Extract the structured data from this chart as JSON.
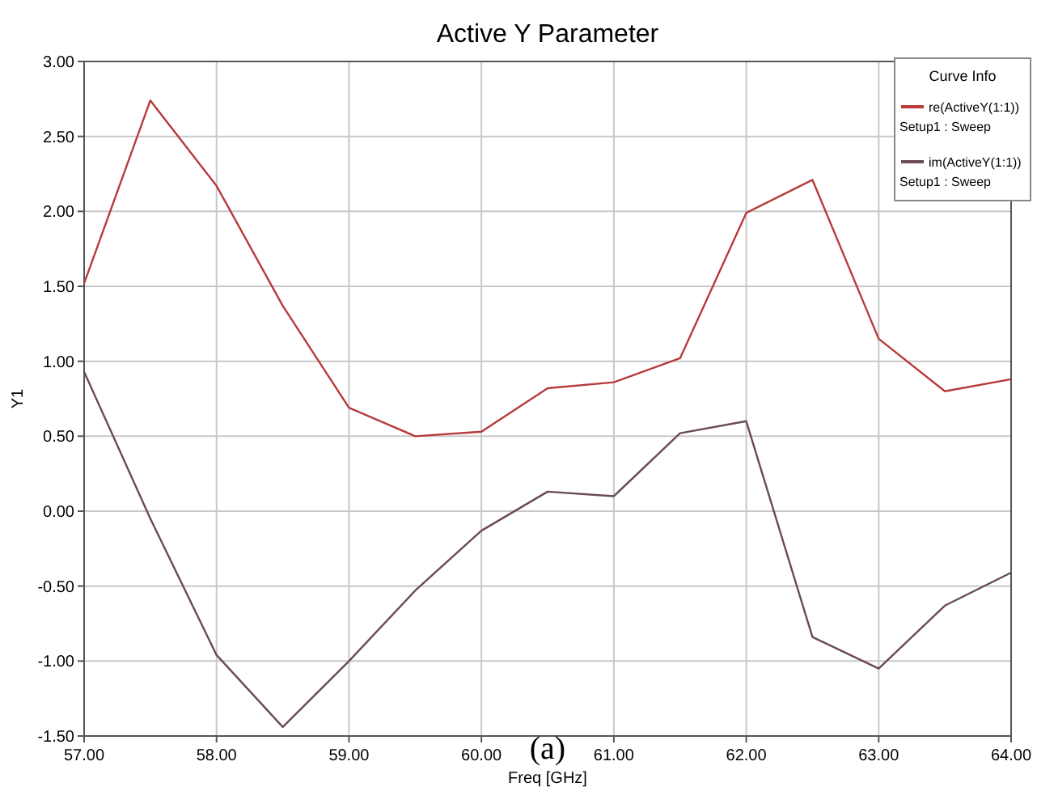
{
  "chart_data": {
    "type": "line",
    "title": "Active Y Parameter",
    "xlabel": "Freq [GHz]",
    "ylabel": "Y1",
    "legend_title": "Curve Info",
    "annotations": [
      "(a)"
    ],
    "x": [
      57,
      57.5,
      58,
      58.5,
      59,
      59.5,
      60,
      60.5,
      61,
      61.5,
      62,
      62.5,
      63,
      63.5,
      64
    ],
    "series": [
      {
        "name": "re(ActiveY(1:1))\nSetup1 : Sweep",
        "color": "#b83a3a",
        "values": [
          1.52,
          2.74,
          2.17,
          1.37,
          0.69,
          0.5,
          0.53,
          0.82,
          0.86,
          1.02,
          1.99,
          2.21,
          1.15,
          0.8,
          0.88
        ]
      },
      {
        "name": "im(ActiveY(1:1))\nSetup1 : Sweep",
        "color": "#6a4a58",
        "values": [
          0.93,
          -0.05,
          -0.96,
          -1.44,
          -1.0,
          -0.53,
          -0.13,
          0.13,
          0.1,
          0.52,
          0.6,
          -0.84,
          -1.05,
          -0.63,
          -0.41
        ]
      }
    ],
    "xlim": [
      57,
      64
    ],
    "ylim": [
      -1.5,
      3
    ],
    "xticks": [
      {
        "value": 57,
        "label": "57.00"
      },
      {
        "value": 58,
        "label": "58.00"
      },
      {
        "value": 59,
        "label": "59.00"
      },
      {
        "value": 60,
        "label": "60.00"
      },
      {
        "value": 61,
        "label": "61.00"
      },
      {
        "value": 62,
        "label": "62.00"
      },
      {
        "value": 63,
        "label": "63.00"
      },
      {
        "value": 64,
        "label": "64.00"
      }
    ],
    "yticks": [
      {
        "value": -1.5,
        "label": "-1.50"
      },
      {
        "value": -1,
        "label": "-1.00"
      },
      {
        "value": -0.5,
        "label": "-0.50"
      },
      {
        "value": 0,
        "label": "0.00"
      },
      {
        "value": 0.5,
        "label": "0.50"
      },
      {
        "value": 1,
        "label": "1.00"
      },
      {
        "value": 1.5,
        "label": "1.50"
      },
      {
        "value": 2,
        "label": "2.00"
      },
      {
        "value": 2.5,
        "label": "2.50"
      },
      {
        "value": 3,
        "label": "3.00"
      }
    ],
    "grid": true,
    "legend": "top right",
    "marker": "none",
    "line_style": "solid"
  }
}
